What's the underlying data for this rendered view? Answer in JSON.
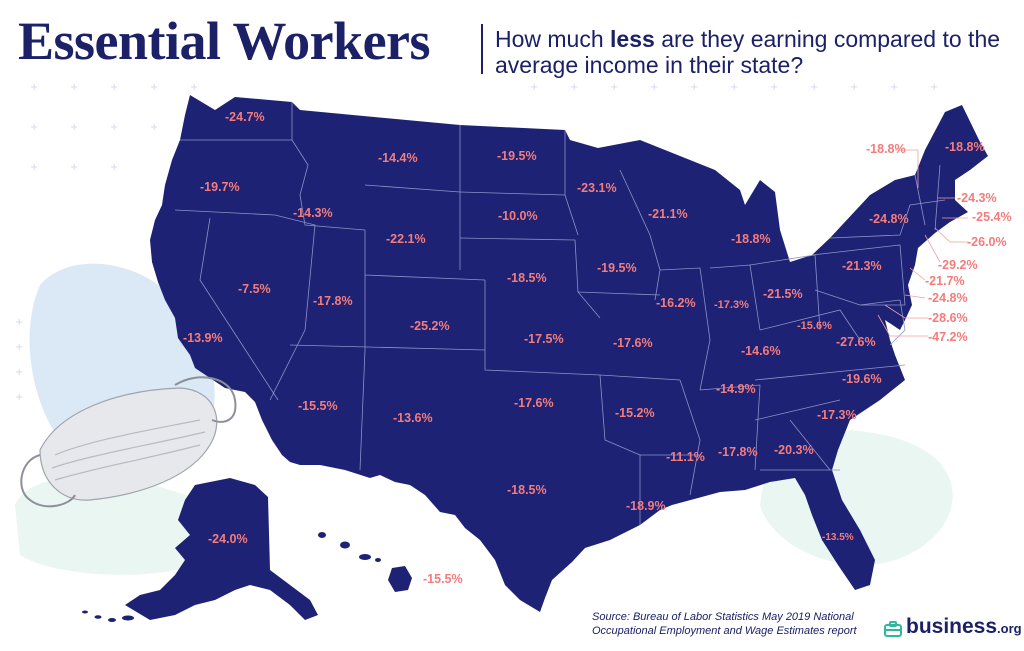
{
  "title": "Essential Workers",
  "subtitle": {
    "before": "How much ",
    "emphasis": "less",
    "after": " are they earning compared to the average income in their state?"
  },
  "source": {
    "line1": "Source: Bureau of Labor Statistics May 2019 National",
    "line2": "Occupational Employment and Wage Estimates report"
  },
  "logo": {
    "name": "business",
    "tld": ".org"
  },
  "colors": {
    "land": "#1d2274",
    "label": "#f47c7c",
    "title": "#1b2067",
    "accent_green": "#2fb89e",
    "blob_blue": "#dbe9f6",
    "blob_green": "#eaf6f1"
  },
  "states": {
    "WA": "-24.7%",
    "OR": "-19.7%",
    "CA": "-13.9%",
    "NV": "-7.5%",
    "ID": "-14.3%",
    "MT": "-14.4%",
    "WY": "-22.1%",
    "UT": "-17.8%",
    "AZ": "-15.5%",
    "CO": "-25.2%",
    "NM": "-13.6%",
    "ND": "-19.5%",
    "SD": "-10.0%",
    "NE": "-18.5%",
    "KS": "-17.5%",
    "OK": "-17.6%",
    "TX": "-18.5%",
    "MN": "-23.1%",
    "IA": "-19.5%",
    "MO": "-17.6%",
    "AR": "-15.2%",
    "LA": "-18.9%",
    "WI": "-21.1%",
    "IL": "-16.2%",
    "MI": "-18.8%",
    "IN": "-17.3%",
    "OH": "-21.5%",
    "KY": "-14.6%",
    "TN": "-14.9%",
    "MS": "-11.1%",
    "AL": "-17.8%",
    "GA": "-20.3%",
    "FL": "-13.5%",
    "SC": "-17.3%",
    "NC": "-19.6%",
    "VA": "-27.6%",
    "WV": "-15.6%",
    "PA": "-21.3%",
    "NY": "-24.8%",
    "AK": "-24.0%",
    "HI": "-15.5%",
    "VT": "-18.8%",
    "ME": "-18.8%",
    "NH": "-24.3%",
    "MA": "-25.4%",
    "RI": "-26.0%",
    "CT": "-29.2%",
    "NJ": "-21.7%",
    "DE": "-24.8%",
    "MD": "-28.6%",
    "DC": "-47.2%"
  }
}
